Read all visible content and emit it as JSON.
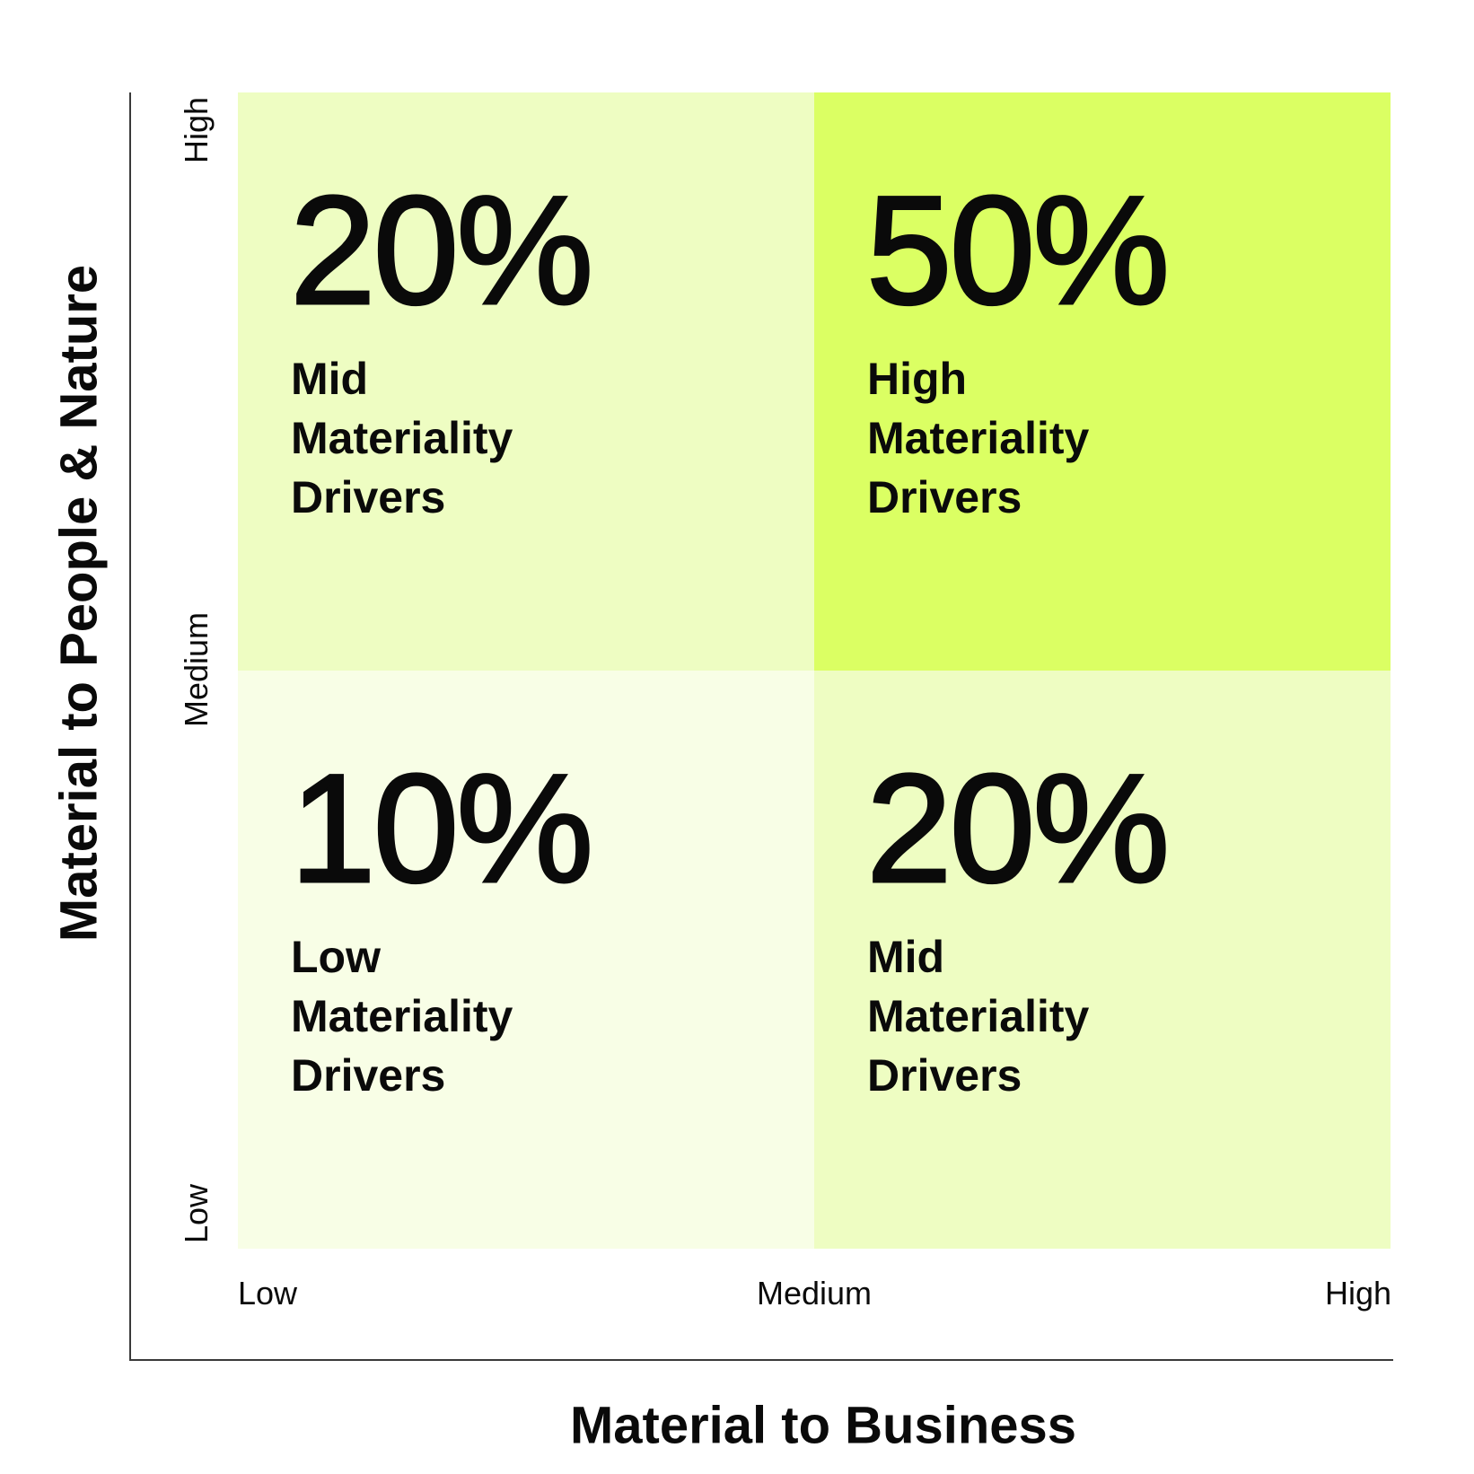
{
  "axes": {
    "y_title": "Material to People & Nature",
    "x_title": "Material to Business",
    "y_ticks": [
      "High",
      "Medium",
      "Low"
    ],
    "x_ticks": [
      "Low",
      "Medium",
      "High"
    ]
  },
  "quadrants": {
    "top_left": {
      "percent": "20%",
      "label_lines": [
        "Mid",
        "Materiality",
        "Drivers"
      ],
      "color": "#eefdc2"
    },
    "top_right": {
      "percent": "50%",
      "label_lines": [
        "High",
        "Materiality",
        "Drivers"
      ],
      "color": "#dbff63"
    },
    "bottom_left": {
      "percent": "10%",
      "label_lines": [
        "Low",
        "Materiality",
        "Drivers"
      ],
      "color": "#f8fee6"
    },
    "bottom_right": {
      "percent": "20%",
      "label_lines": [
        "Mid",
        "Materiality",
        "Drivers"
      ],
      "color": "#eefdc2"
    }
  }
}
